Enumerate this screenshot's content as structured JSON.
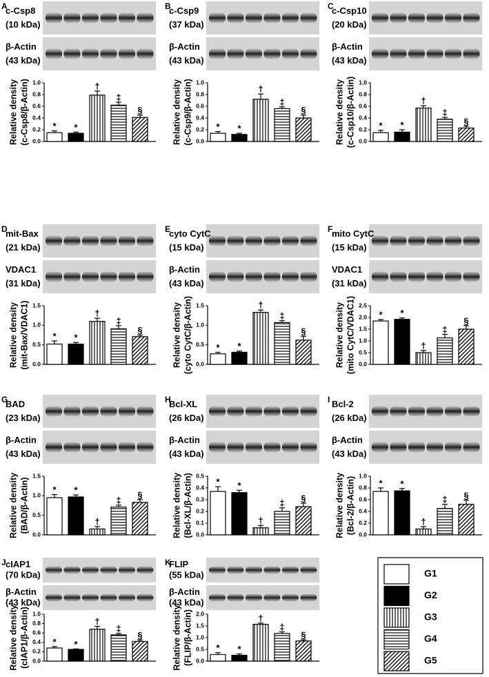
{
  "chart_data": [
    {
      "type": "bar",
      "label": "A",
      "blots": [
        {
          "name": "c-Csp8",
          "size": "(10 kDa)"
        },
        {
          "name": "β-Actin",
          "size": "(43 kDa)"
        }
      ],
      "ylabel": [
        "Relative density",
        "(c-Csp8/β-Actin)"
      ],
      "values": [
        0.15,
        0.14,
        0.79,
        0.62,
        0.41
      ],
      "errors": [
        0.03,
        0.02,
        0.07,
        0.05,
        0.04
      ],
      "annotations": [
        "*",
        "*",
        "†",
        "‡",
        "§"
      ],
      "ylim": [
        0,
        1.0
      ],
      "yticks": [
        {
          "value": 0,
          "label": "0.0"
        },
        0.2,
        0.4,
        0.6,
        0.8,
        {
          "value": 1,
          "label": "1.0"
        }
      ]
    },
    {
      "type": "bar",
      "label": "B",
      "blots": [
        {
          "name": "c-Csp9",
          "size": "(37 kDa)"
        },
        {
          "name": "β-Actin",
          "size": "(43 kDa)"
        }
      ],
      "ylabel": [
        "Relative density",
        "(c-Csp9/β-Actin)"
      ],
      "values": [
        0.14,
        0.12,
        0.72,
        0.56,
        0.4
      ],
      "errors": [
        0.03,
        0.02,
        0.09,
        0.03,
        0.05
      ],
      "annotations": [
        "*",
        "*",
        "†",
        "‡",
        "§"
      ],
      "ylim": [
        0,
        1.0
      ],
      "yticks": [
        {
          "value": 0,
          "label": "0.0"
        },
        0.2,
        0.4,
        0.6,
        0.8,
        {
          "value": 1,
          "label": "1.0"
        }
      ]
    },
    {
      "type": "bar",
      "label": "C",
      "blots": [
        {
          "name": "c-Csp10",
          "size": "(20 kDa)"
        },
        {
          "name": "β-Actin",
          "size": "(43 kDa)"
        }
      ],
      "ylabel": [
        "Relative density",
        "(c-Csp10/β-Actin)"
      ],
      "values": [
        0.15,
        0.16,
        0.57,
        0.38,
        0.23
      ],
      "errors": [
        0.04,
        0.04,
        0.04,
        0.03,
        0.03
      ],
      "annotations": [
        "*",
        "*",
        "†",
        "‡",
        "§"
      ],
      "ylim": [
        0,
        1.0
      ],
      "yticks": [
        {
          "value": 0,
          "label": "0.0"
        },
        0.2,
        0.4,
        0.6,
        0.8,
        {
          "value": 1,
          "label": "1.0"
        }
      ]
    },
    {
      "type": "bar",
      "label": "D",
      "blots": [
        {
          "name": "mit-Bax",
          "size": "(21 kDa)"
        },
        {
          "name": "VDAC1",
          "size": "(31 kDa)"
        }
      ],
      "ylabel": [
        "Relative density",
        "(mit-Bax/VDAC1)"
      ],
      "values": [
        0.52,
        0.52,
        1.1,
        0.91,
        0.71
      ],
      "errors": [
        0.08,
        0.04,
        0.08,
        0.08,
        0.04
      ],
      "annotations": [
        "*",
        "*",
        "†",
        "‡",
        "§"
      ],
      "ylim": [
        0,
        1.5
      ],
      "yticks": [
        {
          "value": 0,
          "label": "0.0"
        },
        0.5,
        {
          "value": 1,
          "label": "1.0"
        },
        1.5
      ]
    },
    {
      "type": "bar",
      "label": "E",
      "blots": [
        {
          "name": "cyto CytC",
          "size": "(15 kDa)"
        },
        {
          "name": "β-Actin",
          "size": "(43 kDa)"
        }
      ],
      "ylabel": [
        "Relative density",
        "(cyto CytC/β-Actin)"
      ],
      "values": [
        0.27,
        0.31,
        1.33,
        1.07,
        0.62
      ],
      "errors": [
        0.04,
        0.03,
        0.06,
        0.05,
        0.1
      ],
      "annotations": [
        "*",
        "*",
        "†",
        "‡",
        "§"
      ],
      "ylim": [
        0,
        1.5
      ],
      "yticks": [
        {
          "value": 0,
          "label": "0.0"
        },
        0.5,
        {
          "value": 1,
          "label": "1.0"
        },
        1.5
      ]
    },
    {
      "type": "bar",
      "label": "F",
      "blots": [
        {
          "name": "mito CytC",
          "size": "(15 kDa)"
        },
        {
          "name": "VDAC1",
          "size": "(31 kDa)"
        }
      ],
      "ylabel": [
        "Relative density",
        "(mito CytC/VDAC1)"
      ],
      "values": [
        1.85,
        1.92,
        0.5,
        1.13,
        1.5
      ],
      "errors": [
        0.06,
        0.06,
        0.09,
        0.15,
        0.15
      ],
      "annotations": [
        "*",
        "*",
        "†",
        "‡",
        "§"
      ],
      "ylim": [
        0,
        2.5
      ],
      "yticks": [
        {
          "value": 0,
          "label": "0.0"
        },
        0.5,
        {
          "value": 1,
          "label": "1.0"
        },
        1.5,
        {
          "value": 2,
          "label": "2.0"
        },
        2.5
      ]
    },
    {
      "type": "bar",
      "label": "G",
      "blots": [
        {
          "name": "BAD",
          "size": "(23 kDa)"
        },
        {
          "name": "β-Actin",
          "size": "(43 kDa)"
        }
      ],
      "ylabel": [
        "Relative density",
        "(BAD/β-Actin)"
      ],
      "values": [
        0.95,
        0.97,
        0.15,
        0.71,
        0.83
      ],
      "errors": [
        0.08,
        0.05,
        0.06,
        0.05,
        0.07
      ],
      "annotations": [
        "*",
        "*",
        "†",
        "‡",
        "§"
      ],
      "ylim": [
        0,
        1.5
      ],
      "yticks": [
        {
          "value": 0,
          "label": "0.0"
        },
        0.5,
        {
          "value": 1,
          "label": "1.0"
        },
        1.5
      ]
    },
    {
      "type": "bar",
      "label": "H",
      "blots": [
        {
          "name": "Bcl-XL",
          "size": "(26 kDa)"
        },
        {
          "name": "β-Actin",
          "size": "(43 kDa)"
        }
      ],
      "ylabel": [
        "Relative density",
        "(Bcl-XL/β-Actin)"
      ],
      "values": [
        0.37,
        0.36,
        0.06,
        0.2,
        0.24
      ],
      "errors": [
        0.04,
        0.02,
        0.02,
        0.03,
        0.03
      ],
      "annotations": [
        "*",
        "*",
        "†",
        "‡",
        "§"
      ],
      "ylim": [
        0,
        0.5
      ],
      "yticks": [
        {
          "value": 0,
          "label": "0.0"
        },
        0.1,
        0.2,
        0.3,
        0.4,
        0.5
      ]
    },
    {
      "type": "bar",
      "label": "I",
      "blots": [
        {
          "name": "Bcl-2",
          "size": "(26 kDa)"
        },
        {
          "name": "β-Actin",
          "size": "(43 kDa)"
        }
      ],
      "ylabel": [
        "Relative density",
        "(Bcl-2/β-Actin)"
      ],
      "values": [
        0.74,
        0.75,
        0.1,
        0.45,
        0.52
      ],
      "errors": [
        0.06,
        0.04,
        0.04,
        0.07,
        0.07
      ],
      "annotations": [
        "*",
        "*",
        "†",
        "‡",
        "§"
      ],
      "ylim": [
        0,
        1.0
      ],
      "yticks": [
        {
          "value": 0,
          "label": "0.0"
        },
        0.2,
        0.4,
        0.6,
        0.8,
        {
          "value": 1,
          "label": "1.0"
        }
      ]
    },
    {
      "type": "bar",
      "label": "J",
      "blots": [
        {
          "name": "cIAP1",
          "size": "(70 kDa)"
        },
        {
          "name": "β-Actin",
          "size": "(43 kDa)"
        }
      ],
      "ylabel": [
        "Relative density",
        "(cIAP1/β-Actin)"
      ],
      "values": [
        0.28,
        0.25,
        0.68,
        0.56,
        0.42
      ],
      "errors": [
        0.03,
        0.01,
        0.06,
        0.03,
        0.03
      ],
      "annotations": [
        "*",
        "*",
        "†",
        "‡",
        "§"
      ],
      "ylim": [
        0,
        1.0
      ],
      "yticks": [
        {
          "value": 0,
          "label": "0.0"
        },
        0.2,
        0.4,
        0.6,
        0.8,
        {
          "value": 1,
          "label": "1.0"
        }
      ]
    },
    {
      "type": "bar",
      "label": "K",
      "blots": [
        {
          "name": "FLIP",
          "size": "(55 kDa)"
        },
        {
          "name": "β-Actin",
          "size": "(43 kDa)"
        }
      ],
      "ylabel": [
        "Relative density",
        "(FLIP/β-Actin)"
      ],
      "values": [
        0.28,
        0.25,
        1.57,
        1.18,
        0.86
      ],
      "errors": [
        0.08,
        0.06,
        0.05,
        0.07,
        0.05
      ],
      "annotations": [
        "*",
        "*",
        "†",
        "‡",
        "§"
      ],
      "ylim": [
        0,
        2.0
      ],
      "yticks": [
        {
          "value": 0,
          "label": "0.0"
        },
        0.5,
        {
          "value": 1,
          "label": "1.0"
        },
        1.5,
        {
          "value": 2,
          "label": "2.0"
        }
      ]
    }
  ],
  "legend": {
    "items": [
      "G1",
      "G2",
      "G3",
      "G4",
      "G5"
    ],
    "fills": [
      "white",
      "black",
      "vertical",
      "horizontal",
      "diagonal"
    ]
  }
}
